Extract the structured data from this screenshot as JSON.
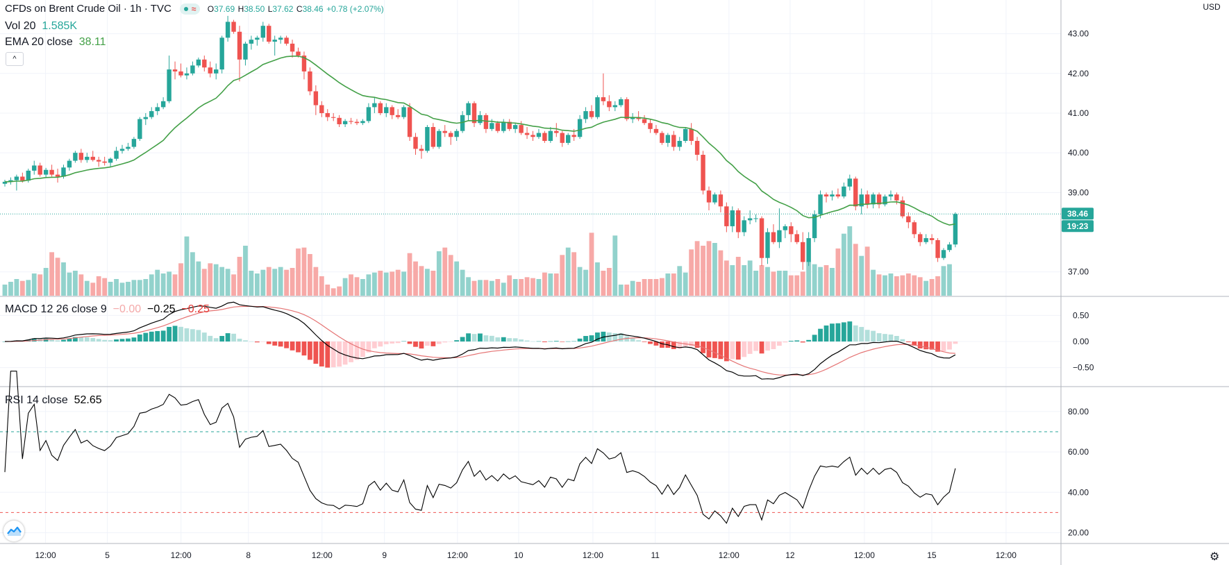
{
  "header": {
    "title": "CFDs on Brent Crude Oil · 1h · TVC",
    "wave_glyph": "≈",
    "ohlc": {
      "o_label": "O",
      "o": "37.69",
      "h_label": "H",
      "h": "38.50",
      "l_label": "L",
      "l": "37.62",
      "c_label": "C",
      "c": "38.46",
      "change": "+0.78 (+2.07%)"
    },
    "vol_label": "Vol 20",
    "vol_value": "1.585K",
    "ema_label": "EMA 20 close",
    "ema_value": "38.11",
    "collapse_glyph": "^",
    "currency": "USD"
  },
  "macd_legend": {
    "label": "MACD 12 26 close 9",
    "v1": "−0.00",
    "v2": "−0.25",
    "v3": "−0.25"
  },
  "rsi_legend": {
    "label": "RSI 14 close",
    "value": "52.65"
  },
  "price_badge": "38.46",
  "time_badge": "19:23",
  "icons": {
    "logo": "tradingview-logo-icon",
    "settings": "gear-icon",
    "collapse": "chevron-up-icon"
  },
  "colors": {
    "up": "#26a69a",
    "down": "#ef5350",
    "ema": "#43a047",
    "macd": "#000000",
    "signal": "#e57373",
    "rsi": "#000000"
  },
  "chart_data": {
    "type": "candlestick",
    "title": "CFDs on Brent Crude Oil · 1h · TVC",
    "x_ticks": [
      "12:00",
      "5",
      "12:00",
      "8",
      "12:00",
      "9",
      "12:00",
      "10",
      "12:00",
      "11",
      "12:00",
      "12",
      "12:00",
      "15",
      "12:00"
    ],
    "price_axis": {
      "ticks": [
        "43.00",
        "42.00",
        "41.00",
        "40.00",
        "39.00",
        "37.00"
      ],
      "ylim": [
        36.4,
        43.85
      ]
    },
    "macd_axis": {
      "ticks": [
        "0.50",
        "0.00",
        "−0.50"
      ],
      "ylim": [
        -0.85,
        0.85
      ]
    },
    "rsi_axis": {
      "ticks": [
        "80.00",
        "60.00",
        "40.00",
        "20.00"
      ],
      "ylim": [
        15,
        92
      ],
      "upper_band": 70,
      "lower_band": 30
    },
    "ema_period": 20,
    "last_price": 38.46,
    "candles": [
      {
        "o": 39.22,
        "h": 39.32,
        "l": 39.15,
        "c": 39.27
      },
      {
        "o": 39.27,
        "h": 39.38,
        "l": 39.2,
        "c": 39.31
      },
      {
        "o": 39.31,
        "h": 39.45,
        "l": 39.05,
        "c": 39.4
      },
      {
        "o": 39.4,
        "h": 39.5,
        "l": 39.25,
        "c": 39.3
      },
      {
        "o": 39.3,
        "h": 39.6,
        "l": 39.25,
        "c": 39.55
      },
      {
        "o": 39.55,
        "h": 39.8,
        "l": 39.45,
        "c": 39.68
      },
      {
        "o": 39.68,
        "h": 39.75,
        "l": 39.4,
        "c": 39.45
      },
      {
        "o": 39.45,
        "h": 39.62,
        "l": 39.38,
        "c": 39.57
      },
      {
        "o": 39.57,
        "h": 39.7,
        "l": 39.4,
        "c": 39.45
      },
      {
        "o": 39.45,
        "h": 39.6,
        "l": 39.25,
        "c": 39.4
      },
      {
        "o": 39.4,
        "h": 39.7,
        "l": 39.35,
        "c": 39.63
      },
      {
        "o": 39.63,
        "h": 39.85,
        "l": 39.55,
        "c": 39.8
      },
      {
        "o": 39.8,
        "h": 40.05,
        "l": 39.75,
        "c": 40.0
      },
      {
        "o": 40.0,
        "h": 40.1,
        "l": 39.75,
        "c": 39.82
      },
      {
        "o": 39.82,
        "h": 40.0,
        "l": 39.75,
        "c": 39.9
      },
      {
        "o": 39.9,
        "h": 40.05,
        "l": 39.78,
        "c": 39.82
      },
      {
        "o": 39.82,
        "h": 39.9,
        "l": 39.65,
        "c": 39.78
      },
      {
        "o": 39.78,
        "h": 39.9,
        "l": 39.68,
        "c": 39.75
      },
      {
        "o": 39.75,
        "h": 39.88,
        "l": 39.65,
        "c": 39.85
      },
      {
        "o": 39.85,
        "h": 40.15,
        "l": 39.8,
        "c": 40.05
      },
      {
        "o": 40.05,
        "h": 40.2,
        "l": 39.98,
        "c": 40.1
      },
      {
        "o": 40.1,
        "h": 40.25,
        "l": 40.05,
        "c": 40.15
      },
      {
        "o": 40.15,
        "h": 40.4,
        "l": 40.1,
        "c": 40.35
      },
      {
        "o": 40.35,
        "h": 40.9,
        "l": 40.3,
        "c": 40.85
      },
      {
        "o": 40.85,
        "h": 41.0,
        "l": 40.7,
        "c": 40.9
      },
      {
        "o": 40.9,
        "h": 41.15,
        "l": 40.85,
        "c": 41.05
      },
      {
        "o": 41.05,
        "h": 41.25,
        "l": 40.95,
        "c": 41.15
      },
      {
        "o": 41.15,
        "h": 41.4,
        "l": 41.1,
        "c": 41.3
      },
      {
        "o": 41.3,
        "h": 42.45,
        "l": 41.25,
        "c": 42.1
      },
      {
        "o": 42.1,
        "h": 42.3,
        "l": 41.85,
        "c": 42.05
      },
      {
        "o": 42.05,
        "h": 42.25,
        "l": 41.9,
        "c": 41.95
      },
      {
        "o": 41.95,
        "h": 42.15,
        "l": 41.85,
        "c": 42.0
      },
      {
        "o": 42.0,
        "h": 42.3,
        "l": 41.95,
        "c": 42.2
      },
      {
        "o": 42.2,
        "h": 42.4,
        "l": 42.15,
        "c": 42.35
      },
      {
        "o": 42.35,
        "h": 42.45,
        "l": 42.05,
        "c": 42.15
      },
      {
        "o": 42.15,
        "h": 42.3,
        "l": 41.9,
        "c": 42.0
      },
      {
        "o": 42.0,
        "h": 42.25,
        "l": 41.85,
        "c": 42.1
      },
      {
        "o": 42.1,
        "h": 42.95,
        "l": 42.0,
        "c": 42.9
      },
      {
        "o": 42.9,
        "h": 43.45,
        "l": 42.8,
        "c": 43.3
      },
      {
        "o": 43.3,
        "h": 43.35,
        "l": 43.0,
        "c": 43.05
      },
      {
        "o": 43.05,
        "h": 43.2,
        "l": 41.8,
        "c": 42.35
      },
      {
        "o": 42.35,
        "h": 42.8,
        "l": 42.2,
        "c": 42.75
      },
      {
        "o": 42.75,
        "h": 42.95,
        "l": 42.6,
        "c": 42.85
      },
      {
        "o": 42.85,
        "h": 42.95,
        "l": 42.7,
        "c": 42.9
      },
      {
        "o": 42.9,
        "h": 43.3,
        "l": 42.8,
        "c": 43.2
      },
      {
        "o": 43.2,
        "h": 43.25,
        "l": 42.75,
        "c": 42.8
      },
      {
        "o": 42.8,
        "h": 42.95,
        "l": 42.45,
        "c": 42.85
      },
      {
        "o": 42.85,
        "h": 42.95,
        "l": 42.75,
        "c": 42.9
      },
      {
        "o": 42.9,
        "h": 42.95,
        "l": 42.7,
        "c": 42.75
      },
      {
        "o": 42.75,
        "h": 42.85,
        "l": 42.4,
        "c": 42.55
      },
      {
        "o": 42.55,
        "h": 42.65,
        "l": 42.4,
        "c": 42.45
      },
      {
        "o": 42.45,
        "h": 42.55,
        "l": 41.85,
        "c": 42.05
      },
      {
        "o": 42.05,
        "h": 42.15,
        "l": 41.45,
        "c": 41.55
      },
      {
        "o": 41.55,
        "h": 41.7,
        "l": 40.95,
        "c": 41.2
      },
      {
        "o": 41.2,
        "h": 41.3,
        "l": 40.9,
        "c": 41.0
      },
      {
        "o": 41.0,
        "h": 41.1,
        "l": 40.8,
        "c": 40.9
      },
      {
        "o": 40.9,
        "h": 41.0,
        "l": 40.8,
        "c": 40.88
      },
      {
        "o": 40.88,
        "h": 40.95,
        "l": 40.65,
        "c": 40.72
      },
      {
        "o": 40.72,
        "h": 40.85,
        "l": 40.65,
        "c": 40.8
      },
      {
        "o": 40.8,
        "h": 40.88,
        "l": 40.72,
        "c": 40.78
      },
      {
        "o": 40.78,
        "h": 40.85,
        "l": 40.7,
        "c": 40.75
      },
      {
        "o": 40.75,
        "h": 40.85,
        "l": 40.7,
        "c": 40.8
      },
      {
        "o": 40.8,
        "h": 41.25,
        "l": 40.75,
        "c": 41.15
      },
      {
        "o": 41.15,
        "h": 41.4,
        "l": 41.0,
        "c": 41.25
      },
      {
        "o": 41.25,
        "h": 41.3,
        "l": 40.95,
        "c": 41.0
      },
      {
        "o": 41.0,
        "h": 41.25,
        "l": 40.9,
        "c": 41.15
      },
      {
        "o": 41.15,
        "h": 41.2,
        "l": 40.85,
        "c": 40.95
      },
      {
        "o": 40.95,
        "h": 41.1,
        "l": 40.85,
        "c": 40.9
      },
      {
        "o": 40.9,
        "h": 41.2,
        "l": 40.85,
        "c": 41.15
      },
      {
        "o": 41.15,
        "h": 41.25,
        "l": 40.3,
        "c": 40.4
      },
      {
        "o": 40.4,
        "h": 40.5,
        "l": 39.95,
        "c": 40.1
      },
      {
        "o": 40.1,
        "h": 40.2,
        "l": 39.85,
        "c": 40.05
      },
      {
        "o": 40.05,
        "h": 40.7,
        "l": 40.0,
        "c": 40.65
      },
      {
        "o": 40.65,
        "h": 40.75,
        "l": 40.1,
        "c": 40.15
      },
      {
        "o": 40.15,
        "h": 40.6,
        "l": 40.1,
        "c": 40.55
      },
      {
        "o": 40.55,
        "h": 40.7,
        "l": 40.4,
        "c": 40.5
      },
      {
        "o": 40.5,
        "h": 40.55,
        "l": 40.2,
        "c": 40.4
      },
      {
        "o": 40.4,
        "h": 40.6,
        "l": 40.3,
        "c": 40.55
      },
      {
        "o": 40.55,
        "h": 41.05,
        "l": 40.5,
        "c": 40.95
      },
      {
        "o": 40.95,
        "h": 41.3,
        "l": 40.8,
        "c": 41.25
      },
      {
        "o": 41.25,
        "h": 41.3,
        "l": 40.65,
        "c": 40.75
      },
      {
        "o": 40.75,
        "h": 41.05,
        "l": 40.7,
        "c": 40.95
      },
      {
        "o": 40.95,
        "h": 41.0,
        "l": 40.5,
        "c": 40.6
      },
      {
        "o": 40.6,
        "h": 40.85,
        "l": 40.55,
        "c": 40.75
      },
      {
        "o": 40.75,
        "h": 40.8,
        "l": 40.5,
        "c": 40.55
      },
      {
        "o": 40.55,
        "h": 40.85,
        "l": 40.5,
        "c": 40.78
      },
      {
        "o": 40.78,
        "h": 40.85,
        "l": 40.55,
        "c": 40.6
      },
      {
        "o": 40.6,
        "h": 40.75,
        "l": 40.5,
        "c": 40.7
      },
      {
        "o": 40.7,
        "h": 40.8,
        "l": 40.45,
        "c": 40.5
      },
      {
        "o": 40.5,
        "h": 40.65,
        "l": 40.35,
        "c": 40.45
      },
      {
        "o": 40.45,
        "h": 40.55,
        "l": 40.3,
        "c": 40.4
      },
      {
        "o": 40.4,
        "h": 40.6,
        "l": 40.35,
        "c": 40.5
      },
      {
        "o": 40.5,
        "h": 40.55,
        "l": 40.25,
        "c": 40.3
      },
      {
        "o": 40.3,
        "h": 40.65,
        "l": 40.25,
        "c": 40.55
      },
      {
        "o": 40.55,
        "h": 40.75,
        "l": 40.4,
        "c": 40.5
      },
      {
        "o": 40.5,
        "h": 40.55,
        "l": 40.15,
        "c": 40.25
      },
      {
        "o": 40.25,
        "h": 40.5,
        "l": 40.2,
        "c": 40.45
      },
      {
        "o": 40.45,
        "h": 40.6,
        "l": 40.3,
        "c": 40.4
      },
      {
        "o": 40.4,
        "h": 40.95,
        "l": 40.35,
        "c": 40.85
      },
      {
        "o": 40.85,
        "h": 41.15,
        "l": 40.75,
        "c": 41.05
      },
      {
        "o": 41.05,
        "h": 41.2,
        "l": 40.85,
        "c": 40.9
      },
      {
        "o": 40.9,
        "h": 41.45,
        "l": 40.85,
        "c": 41.4
      },
      {
        "o": 41.4,
        "h": 42.0,
        "l": 41.2,
        "c": 41.3
      },
      {
        "o": 41.3,
        "h": 41.45,
        "l": 41.05,
        "c": 41.15
      },
      {
        "o": 41.15,
        "h": 41.3,
        "l": 41.05,
        "c": 41.2
      },
      {
        "o": 41.2,
        "h": 41.4,
        "l": 41.15,
        "c": 41.35
      },
      {
        "o": 41.35,
        "h": 41.4,
        "l": 40.8,
        "c": 40.85
      },
      {
        "o": 40.85,
        "h": 41.0,
        "l": 40.75,
        "c": 40.9
      },
      {
        "o": 40.9,
        "h": 41.05,
        "l": 40.8,
        "c": 40.85
      },
      {
        "o": 40.85,
        "h": 40.95,
        "l": 40.7,
        "c": 40.75
      },
      {
        "o": 40.75,
        "h": 40.85,
        "l": 40.5,
        "c": 40.6
      },
      {
        "o": 40.6,
        "h": 40.7,
        "l": 40.45,
        "c": 40.5
      },
      {
        "o": 40.5,
        "h": 40.55,
        "l": 40.2,
        "c": 40.25
      },
      {
        "o": 40.25,
        "h": 40.5,
        "l": 40.15,
        "c": 40.45
      },
      {
        "o": 40.45,
        "h": 40.55,
        "l": 40.05,
        "c": 40.15
      },
      {
        "o": 40.15,
        "h": 40.4,
        "l": 40.05,
        "c": 40.3
      },
      {
        "o": 40.3,
        "h": 40.65,
        "l": 40.25,
        "c": 40.6
      },
      {
        "o": 40.6,
        "h": 40.75,
        "l": 40.2,
        "c": 40.3
      },
      {
        "o": 40.3,
        "h": 40.4,
        "l": 39.8,
        "c": 39.95
      },
      {
        "o": 39.95,
        "h": 40.05,
        "l": 38.95,
        "c": 39.05
      },
      {
        "o": 39.05,
        "h": 39.15,
        "l": 38.55,
        "c": 38.75
      },
      {
        "o": 38.75,
        "h": 39.0,
        "l": 38.7,
        "c": 38.95
      },
      {
        "o": 38.95,
        "h": 39.05,
        "l": 38.5,
        "c": 38.65
      },
      {
        "o": 38.65,
        "h": 38.75,
        "l": 38.0,
        "c": 38.15
      },
      {
        "o": 38.15,
        "h": 38.65,
        "l": 38.0,
        "c": 38.55
      },
      {
        "o": 38.55,
        "h": 38.6,
        "l": 37.85,
        "c": 38.0
      },
      {
        "o": 38.0,
        "h": 38.4,
        "l": 37.9,
        "c": 38.3
      },
      {
        "o": 38.3,
        "h": 38.55,
        "l": 38.2,
        "c": 38.35
      },
      {
        "o": 38.35,
        "h": 38.45,
        "l": 38.25,
        "c": 38.35
      },
      {
        "o": 38.35,
        "h": 38.4,
        "l": 37.15,
        "c": 37.35
      },
      {
        "o": 37.35,
        "h": 38.1,
        "l": 37.2,
        "c": 38.0
      },
      {
        "o": 38.0,
        "h": 38.2,
        "l": 37.7,
        "c": 37.75
      },
      {
        "o": 37.75,
        "h": 38.6,
        "l": 37.6,
        "c": 38.05
      },
      {
        "o": 38.05,
        "h": 38.2,
        "l": 37.85,
        "c": 38.15
      },
      {
        "o": 38.15,
        "h": 38.25,
        "l": 37.75,
        "c": 37.95
      },
      {
        "o": 37.95,
        "h": 38.05,
        "l": 37.7,
        "c": 37.75
      },
      {
        "o": 37.75,
        "h": 38.0,
        "l": 37.05,
        "c": 37.25
      },
      {
        "o": 37.25,
        "h": 38.0,
        "l": 37.15,
        "c": 37.85
      },
      {
        "o": 37.85,
        "h": 38.55,
        "l": 37.75,
        "c": 38.45
      },
      {
        "o": 38.45,
        "h": 39.05,
        "l": 38.35,
        "c": 38.95
      },
      {
        "o": 38.95,
        "h": 39.0,
        "l": 38.75,
        "c": 38.9
      },
      {
        "o": 38.9,
        "h": 39.05,
        "l": 38.8,
        "c": 38.95
      },
      {
        "o": 38.95,
        "h": 39.1,
        "l": 38.85,
        "c": 38.9
      },
      {
        "o": 38.9,
        "h": 39.25,
        "l": 38.85,
        "c": 39.15
      },
      {
        "o": 39.15,
        "h": 39.45,
        "l": 39.05,
        "c": 39.35
      },
      {
        "o": 39.35,
        "h": 39.4,
        "l": 38.55,
        "c": 38.65
      },
      {
        "o": 38.65,
        "h": 39.1,
        "l": 38.45,
        "c": 38.95
      },
      {
        "o": 38.95,
        "h": 39.05,
        "l": 38.6,
        "c": 38.7
      },
      {
        "o": 38.7,
        "h": 39.0,
        "l": 38.6,
        "c": 38.95
      },
      {
        "o": 38.95,
        "h": 39.0,
        "l": 38.6,
        "c": 38.7
      },
      {
        "o": 38.7,
        "h": 38.95,
        "l": 38.65,
        "c": 38.9
      },
      {
        "o": 38.9,
        "h": 39.05,
        "l": 38.8,
        "c": 38.95
      },
      {
        "o": 38.95,
        "h": 39.0,
        "l": 38.7,
        "c": 38.8
      },
      {
        "o": 38.8,
        "h": 38.9,
        "l": 38.35,
        "c": 38.4
      },
      {
        "o": 38.4,
        "h": 38.5,
        "l": 38.1,
        "c": 38.25
      },
      {
        "o": 38.25,
        "h": 38.3,
        "l": 37.85,
        "c": 37.95
      },
      {
        "o": 37.95,
        "h": 38.0,
        "l": 37.65,
        "c": 37.75
      },
      {
        "o": 37.75,
        "h": 37.95,
        "l": 37.7,
        "c": 37.85
      },
      {
        "o": 37.85,
        "h": 37.95,
        "l": 37.7,
        "c": 37.8
      },
      {
        "o": 37.8,
        "h": 37.85,
        "l": 37.25,
        "c": 37.35
      },
      {
        "o": 37.35,
        "h": 37.6,
        "l": 37.3,
        "c": 37.55
      },
      {
        "o": 37.55,
        "h": 37.75,
        "l": 37.5,
        "c": 37.69
      },
      {
        "o": 37.69,
        "h": 38.5,
        "l": 37.62,
        "c": 38.46
      }
    ],
    "volume": [
      120,
      150,
      180,
      160,
      170,
      240,
      230,
      300,
      470,
      410,
      360,
      250,
      270,
      230,
      160,
      140,
      210,
      190,
      150,
      180,
      140,
      150,
      170,
      170,
      180,
      230,
      280,
      240,
      260,
      230,
      350,
      640,
      470,
      370,
      290,
      350,
      340,
      310,
      290,
      230,
      420,
      540,
      270,
      240,
      280,
      310,
      290,
      310,
      280,
      300,
      510,
      520,
      450,
      310,
      210,
      120,
      80,
      100,
      190,
      230,
      200,
      180,
      230,
      250,
      270,
      250,
      260,
      280,
      260,
      460,
      370,
      320,
      290,
      270,
      480,
      520,
      440,
      370,
      280,
      200,
      160,
      170,
      170,
      160,
      180,
      140,
      220,
      180,
      180,
      200,
      190,
      180,
      250,
      240,
      240,
      440,
      520,
      470,
      310,
      280,
      680,
      360,
      270,
      300,
      650,
      120,
      120,
      160,
      150,
      180,
      180,
      180,
      190,
      240,
      240,
      320,
      250,
      500,
      590,
      540,
      590,
      570,
      490,
      380,
      330,
      420,
      330,
      380,
      270,
      330,
      310,
      260,
      270,
      270,
      220,
      220,
      260,
      370,
      340,
      310,
      330,
      300,
      510,
      670,
      750,
      560,
      430,
      530,
      280,
      230,
      220,
      240,
      210,
      220,
      240,
      220,
      200,
      160,
      180,
      210,
      320,
      340
    ]
  }
}
